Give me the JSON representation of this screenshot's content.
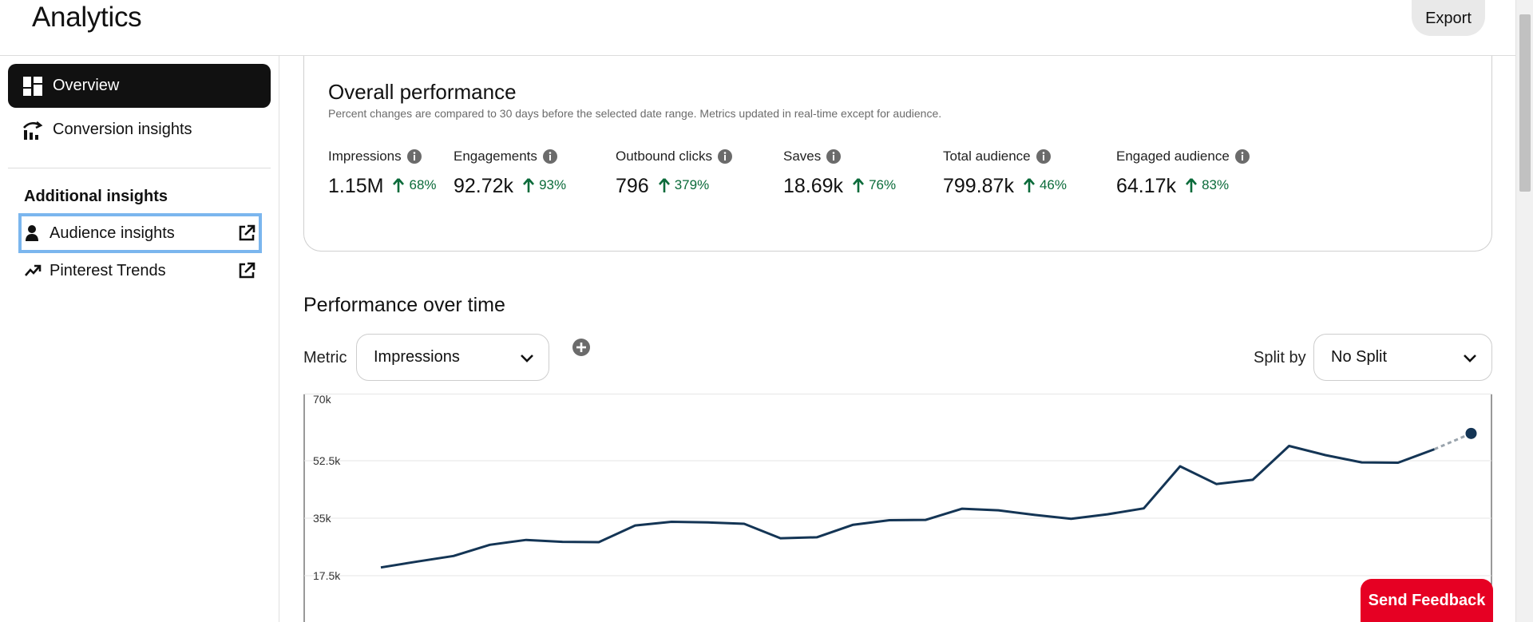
{
  "header": {
    "title": "Analytics",
    "export_label": "Export"
  },
  "sidebar": {
    "items": [
      {
        "label": "Overview",
        "icon": "dashboard-icon",
        "active": true
      },
      {
        "label": "Conversion insights",
        "icon": "conversion-chart-icon",
        "active": false
      }
    ],
    "section_title": "Additional insights",
    "external_items": [
      {
        "label": "Audience insights",
        "icon": "audience-icon",
        "external_icon": "external-link-icon",
        "focused": true
      },
      {
        "label": "Pinterest Trends",
        "icon": "trend-arrow-icon",
        "external_icon": "external-link-icon",
        "focused": false
      }
    ]
  },
  "overall_performance": {
    "title": "Overall performance",
    "subtitle": "Percent changes are compared to 30 days before the selected date range. Metrics updated in real-time except for audience.",
    "metrics": [
      {
        "label": "Impressions",
        "value": "1.15M",
        "change": "68%"
      },
      {
        "label": "Engagements",
        "value": "92.72k",
        "change": "93%"
      },
      {
        "label": "Outbound clicks",
        "value": "796",
        "change": "379%"
      },
      {
        "label": "Saves",
        "value": "18.69k",
        "change": "76%"
      },
      {
        "label": "Total audience",
        "value": "799.87k",
        "change": "46%"
      },
      {
        "label": "Engaged audience",
        "value": "64.17k",
        "change": "83%"
      }
    ],
    "change_color": "#0b6b3a"
  },
  "performance_over_time": {
    "title": "Performance over time",
    "metric_label": "Metric",
    "metric_selected": "Impressions",
    "split_label": "Split by",
    "split_selected": "No Split"
  },
  "chart_data": {
    "type": "line",
    "title": "",
    "xlabel": "",
    "ylabel": "",
    "y_ticks": [
      "70k",
      "52.5k",
      "35k",
      "17.5k"
    ],
    "ylim": [
      17500,
      70000
    ],
    "grid": true,
    "line_color": "#143555",
    "projection_color": "#9aa4ad",
    "series": [
      {
        "values": [
          20000,
          21800,
          23500,
          26900,
          28400,
          27800,
          27700,
          32800,
          33900,
          33700,
          33300,
          28900,
          29200,
          33000,
          34400,
          34500,
          37900,
          37400,
          36000,
          34800,
          36200,
          38000,
          50800,
          45400,
          46700,
          57000,
          54200,
          52000,
          51900,
          56000
        ],
        "projected_value": 60800
      }
    ]
  },
  "feedback": {
    "label": "Send Feedback",
    "color": "#e60023"
  }
}
